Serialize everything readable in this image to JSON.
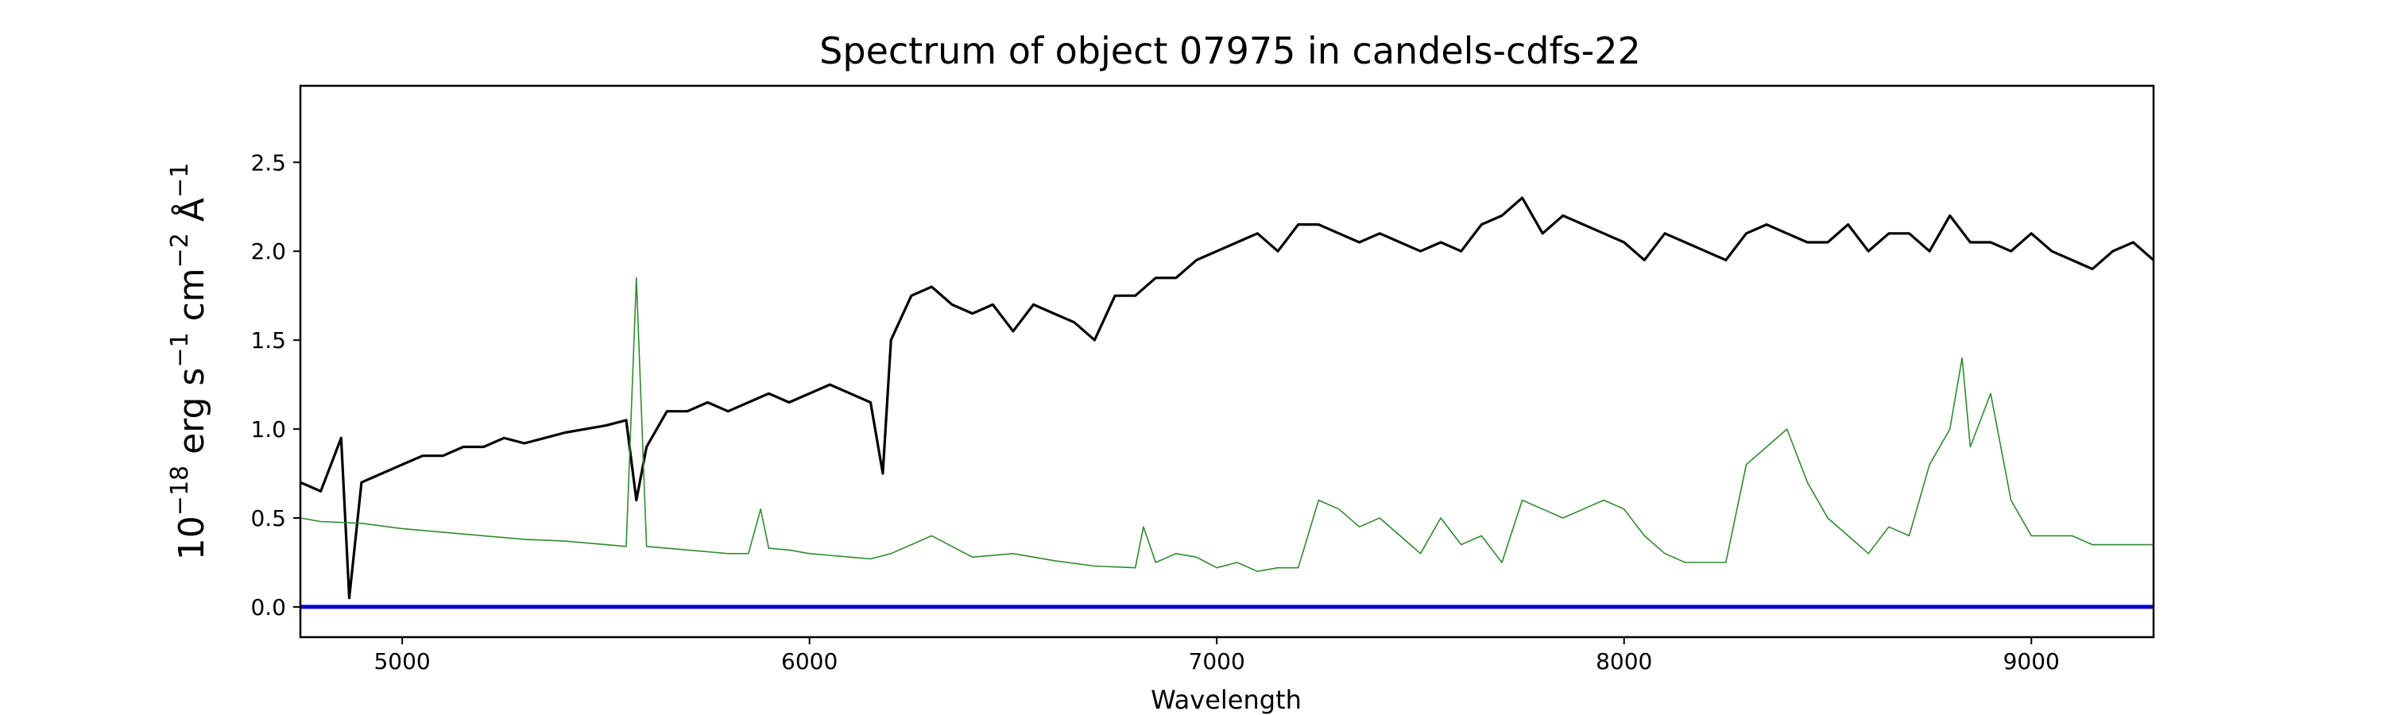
{
  "chart_data": {
    "type": "line",
    "title": "Spectrum of object 07975 in candels-cdfs-22",
    "xlabel": "Wavelength",
    "ylabel": {
      "base": "10",
      "exp1": "−18",
      "erg": " erg s",
      "exp2": "−1",
      "cm": " cm",
      "exp3": "−2",
      "ang": " Å",
      "exp4": "−1"
    },
    "xlim": [
      4750,
      9300
    ],
    "ylim": [
      -0.17,
      2.93
    ],
    "grid": false,
    "x_ticks": [
      5000,
      6000,
      7000,
      8000,
      9000
    ],
    "y_ticks": [
      {
        "value": 0.0,
        "label": "0.0"
      },
      {
        "value": 0.5,
        "label": "0.5"
      },
      {
        "value": 1.0,
        "label": "1.0"
      },
      {
        "value": 1.5,
        "label": "1.5"
      },
      {
        "value": 2.0,
        "label": "2.0"
      },
      {
        "value": 2.5,
        "label": "2.5"
      }
    ],
    "series": [
      {
        "role": "flux",
        "color": "#000000",
        "x": [
          4750,
          4800,
          4850,
          4870,
          4900,
          4950,
          5000,
          5050,
          5100,
          5150,
          5200,
          5250,
          5300,
          5350,
          5400,
          5450,
          5500,
          5550,
          5575,
          5600,
          5650,
          5700,
          5750,
          5800,
          5850,
          5900,
          5950,
          6000,
          6050,
          6100,
          6150,
          6180,
          6200,
          6250,
          6300,
          6350,
          6400,
          6450,
          6500,
          6550,
          6600,
          6650,
          6700,
          6750,
          6800,
          6850,
          6900,
          6950,
          7000,
          7050,
          7100,
          7150,
          7200,
          7250,
          7300,
          7350,
          7400,
          7450,
          7500,
          7550,
          7600,
          7650,
          7700,
          7750,
          7800,
          7850,
          7900,
          7950,
          8000,
          8050,
          8100,
          8150,
          8200,
          8250,
          8300,
          8350,
          8400,
          8450,
          8500,
          8550,
          8600,
          8650,
          8700,
          8750,
          8800,
          8850,
          8900,
          8950,
          9000,
          9050,
          9100,
          9150,
          9200,
          9250,
          9300
        ],
        "y": [
          0.7,
          0.65,
          0.95,
          0.05,
          0.7,
          0.75,
          0.8,
          0.85,
          0.85,
          0.9,
          0.9,
          0.95,
          0.92,
          0.95,
          0.98,
          1.0,
          1.02,
          1.05,
          0.6,
          0.9,
          1.1,
          1.1,
          1.15,
          1.1,
          1.15,
          1.2,
          1.15,
          1.2,
          1.25,
          1.2,
          1.15,
          0.75,
          1.5,
          1.75,
          1.8,
          1.7,
          1.65,
          1.7,
          1.55,
          1.7,
          1.65,
          1.6,
          1.5,
          1.75,
          1.75,
          1.85,
          1.85,
          1.95,
          2.0,
          2.05,
          2.1,
          2.0,
          2.15,
          2.15,
          2.1,
          2.05,
          2.1,
          2.05,
          2.0,
          2.05,
          2.0,
          2.15,
          2.2,
          2.3,
          2.1,
          2.2,
          2.15,
          2.1,
          2.05,
          1.95,
          2.1,
          2.05,
          2.0,
          1.95,
          2.1,
          2.15,
          2.1,
          2.05,
          2.05,
          2.15,
          2.0,
          2.1,
          2.1,
          2.0,
          2.2,
          2.05,
          2.05,
          2.0,
          2.1,
          2.0,
          1.95,
          1.9,
          2.0,
          2.05,
          1.95
        ]
      },
      {
        "role": "noise",
        "color": "#2e8b2e",
        "x": [
          4750,
          4800,
          4900,
          5000,
          5100,
          5200,
          5300,
          5400,
          5500,
          5550,
          5575,
          5600,
          5650,
          5700,
          5750,
          5800,
          5850,
          5880,
          5900,
          5950,
          6000,
          6050,
          6100,
          6150,
          6200,
          6250,
          6300,
          6400,
          6500,
          6600,
          6700,
          6800,
          6820,
          6850,
          6900,
          6950,
          7000,
          7050,
          7100,
          7150,
          7200,
          7250,
          7300,
          7350,
          7400,
          7450,
          7500,
          7550,
          7600,
          7650,
          7700,
          7750,
          7800,
          7850,
          7900,
          7950,
          8000,
          8050,
          8100,
          8150,
          8200,
          8250,
          8300,
          8350,
          8400,
          8450,
          8500,
          8550,
          8600,
          8650,
          8700,
          8750,
          8800,
          8830,
          8850,
          8900,
          8950,
          9000,
          9050,
          9100,
          9150,
          9200,
          9250,
          9300
        ],
        "y": [
          0.5,
          0.48,
          0.47,
          0.44,
          0.42,
          0.4,
          0.38,
          0.37,
          0.35,
          0.34,
          1.85,
          0.34,
          0.33,
          0.32,
          0.31,
          0.3,
          0.3,
          0.55,
          0.33,
          0.32,
          0.3,
          0.29,
          0.28,
          0.27,
          0.3,
          0.35,
          0.4,
          0.28,
          0.3,
          0.26,
          0.23,
          0.22,
          0.45,
          0.25,
          0.3,
          0.28,
          0.22,
          0.25,
          0.2,
          0.22,
          0.22,
          0.6,
          0.55,
          0.45,
          0.5,
          0.4,
          0.3,
          0.5,
          0.35,
          0.4,
          0.25,
          0.6,
          0.55,
          0.5,
          0.55,
          0.6,
          0.55,
          0.4,
          0.3,
          0.25,
          0.25,
          0.25,
          0.8,
          0.9,
          1.0,
          0.7,
          0.5,
          0.4,
          0.3,
          0.45,
          0.4,
          0.8,
          1.0,
          1.4,
          0.9,
          1.2,
          0.6,
          0.4,
          0.4,
          0.4,
          0.35,
          0.35,
          0.35,
          0.35
        ]
      },
      {
        "role": "zero",
        "color": "#0000cc",
        "x": [
          4750,
          9300
        ],
        "y": [
          0,
          0
        ]
      }
    ]
  }
}
